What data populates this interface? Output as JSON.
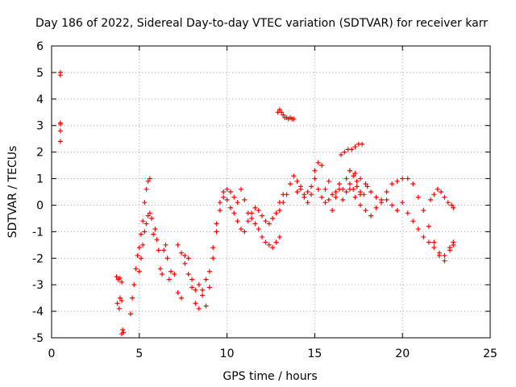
{
  "chart_data": {
    "type": "scatter",
    "title": "Day 186 of 2022, Sidereal Day-to-day VTEC variation (SDTVAR) for receiver karr",
    "xlabel": "GPS time / hours",
    "ylabel": "SDTVAR / TECUs",
    "xlim": [
      0,
      25
    ],
    "ylim": [
      -5,
      6
    ],
    "xticks": [
      "0",
      "5",
      "10",
      "15",
      "20",
      "25"
    ],
    "yticks": [
      "-5",
      "-4",
      "-3",
      "-2",
      "-1",
      "0",
      "1",
      "2",
      "3",
      "4",
      "5",
      "6"
    ],
    "grid": true,
    "marker": "+",
    "color": "#ff0000",
    "series": [
      {
        "name": "SDTVAR",
        "x": [
          0.5,
          0.5,
          0.5,
          0.5,
          0.5,
          0.5,
          3.7,
          3.8,
          3.9,
          4.0,
          3.75,
          3.85,
          3.9,
          4.0,
          4.05,
          4.0,
          4.1,
          4.5,
          4.6,
          4.7,
          4.8,
          4.9,
          5.0,
          5.1,
          5.2,
          5.3,
          5.4,
          5.5,
          5.6,
          5.0,
          5.1,
          5.2,
          5.3,
          5.4,
          5.5,
          5.6,
          5.7,
          5.8,
          5.9,
          6.0,
          6.1,
          6.2,
          6.3,
          6.4,
          6.5,
          6.6,
          6.7,
          6.8,
          7.0,
          7.2,
          7.4,
          7.6,
          7.8,
          8.0,
          8.2,
          8.4,
          8.6,
          8.8,
          9.0,
          9.2,
          7.2,
          7.4,
          7.6,
          7.8,
          8.0,
          8.2,
          8.4,
          8.6,
          8.8,
          9.0,
          9.2,
          9.4,
          9.6,
          9.8,
          10.0,
          10.2,
          10.4,
          10.6,
          10.8,
          11.0,
          11.2,
          11.4,
          11.6,
          11.8,
          12.0,
          12.2,
          12.4,
          12.6,
          12.8,
          13.0,
          9.4,
          9.6,
          9.8,
          10.0,
          10.2,
          10.4,
          10.6,
          10.8,
          11.0,
          11.2,
          11.4,
          11.6,
          11.8,
          12.0,
          12.2,
          12.4,
          12.6,
          12.8,
          13.0,
          13.2,
          12.9,
          13.0,
          13.1,
          13.2,
          13.3,
          13.4,
          13.5,
          13.6,
          13.7,
          13.8,
          13.0,
          13.2,
          13.4,
          13.6,
          13.8,
          14.0,
          14.2,
          14.4,
          14.6,
          14.8,
          15.0,
          15.2,
          15.4,
          15.6,
          15.8,
          16.0,
          16.2,
          16.4,
          16.6,
          16.8,
          17.0,
          17.2,
          17.4,
          17.6,
          17.8,
          18.0,
          14.0,
          14.2,
          14.4,
          14.6,
          14.8,
          15.0,
          15.2,
          15.4,
          15.6,
          15.8,
          16.0,
          16.2,
          16.4,
          16.6,
          16.8,
          17.0,
          17.2,
          17.4,
          17.6,
          16.5,
          16.7,
          16.9,
          17.1,
          17.3,
          17.5,
          17.7,
          17.0,
          17.3,
          17.6,
          17.9,
          18.2,
          18.5,
          18.8,
          19.1,
          19.4,
          19.7,
          20.0,
          20.3,
          20.6,
          20.9,
          21.2,
          21.5,
          21.8,
          22.1,
          22.4,
          22.7,
          22.9,
          17.0,
          17.3,
          17.6,
          17.9,
          18.2,
          18.5,
          18.8,
          19.1,
          19.4,
          19.7,
          20.0,
          20.3,
          20.6,
          20.9,
          21.2,
          21.5,
          21.8,
          22.1,
          22.4,
          22.7,
          22.9,
          21.6,
          21.8,
          22.0,
          22.2,
          22.4,
          22.6,
          22.8,
          22.9
        ],
        "y": [
          5.0,
          4.9,
          3.1,
          2.8,
          2.4,
          3.05,
          -2.7,
          -2.8,
          -2.75,
          -2.9,
          -3.7,
          -3.9,
          -3.5,
          -3.6,
          -4.7,
          -4.85,
          -4.8,
          -4.1,
          -3.5,
          -3.0,
          -2.4,
          -1.9,
          -1.6,
          -1.1,
          -0.6,
          0.1,
          0.6,
          0.9,
          1.0,
          -2.5,
          -2.0,
          -1.5,
          -1.0,
          -0.7,
          -0.4,
          -0.3,
          -0.5,
          -1.1,
          -0.9,
          -1.3,
          -1.7,
          -2.4,
          -2.6,
          -1.7,
          -1.5,
          -2.0,
          -2.8,
          -2.5,
          -2.6,
          -3.3,
          -3.5,
          -2.2,
          -2.0,
          -3.1,
          -3.7,
          -3.9,
          -3.2,
          -2.8,
          -2.5,
          -2.0,
          -1.5,
          -1.8,
          -1.9,
          -2.6,
          -2.8,
          -3.2,
          -3.0,
          -3.4,
          -3.8,
          -3.1,
          -1.6,
          -0.7,
          0.1,
          0.5,
          0.6,
          0.5,
          0.3,
          0.1,
          0.6,
          0.2,
          -0.3,
          -0.5,
          -0.7,
          -0.9,
          -1.2,
          -1.4,
          -1.5,
          -1.6,
          -1.4,
          -1.2,
          -1.0,
          -0.2,
          0.3,
          0.2,
          -0.1,
          -0.3,
          -0.6,
          -0.9,
          -1.0,
          -0.6,
          -0.3,
          -0.1,
          -0.2,
          -0.4,
          -0.6,
          -0.7,
          -0.5,
          -0.3,
          0.1,
          0.4,
          3.5,
          3.6,
          3.5,
          3.4,
          3.3,
          3.3,
          3.25,
          3.3,
          3.25,
          3.25,
          -0.2,
          0.1,
          0.4,
          0.8,
          1.1,
          0.5,
          0.7,
          0.4,
          0.1,
          0.4,
          1.0,
          1.6,
          1.5,
          0.6,
          0.9,
          0.4,
          0.3,
          0.6,
          0.2,
          0.5,
          0.8,
          0.6,
          0.9,
          0.5,
          0.4,
          0.7,
          0.9,
          0.6,
          0.3,
          0.5,
          0.7,
          1.3,
          0.6,
          0.3,
          0.1,
          0.2,
          -0.2,
          0.5,
          0.8,
          0.6,
          1.0,
          1.3,
          1.1,
          0.7,
          0.4,
          1.9,
          2.0,
          2.1,
          2.1,
          2.2,
          2.3,
          2.3,
          1.3,
          1.2,
          1.0,
          0.8,
          0.5,
          0.3,
          0.2,
          0.5,
          0.8,
          0.9,
          1.0,
          1.0,
          0.8,
          0.3,
          -0.2,
          -0.8,
          -1.4,
          -1.9,
          -2.1,
          -1.7,
          -1.4,
          0.6,
          0.3,
          0.0,
          -0.2,
          -0.4,
          -0.1,
          0.1,
          0.2,
          0.0,
          -0.2,
          0.1,
          -0.3,
          -0.6,
          -0.9,
          -1.2,
          -1.4,
          -1.6,
          -1.8,
          -1.9,
          -1.6,
          -1.5,
          0.2,
          0.4,
          0.6,
          0.5,
          0.3,
          0.1,
          0.0,
          -0.1
        ]
      }
    ]
  }
}
